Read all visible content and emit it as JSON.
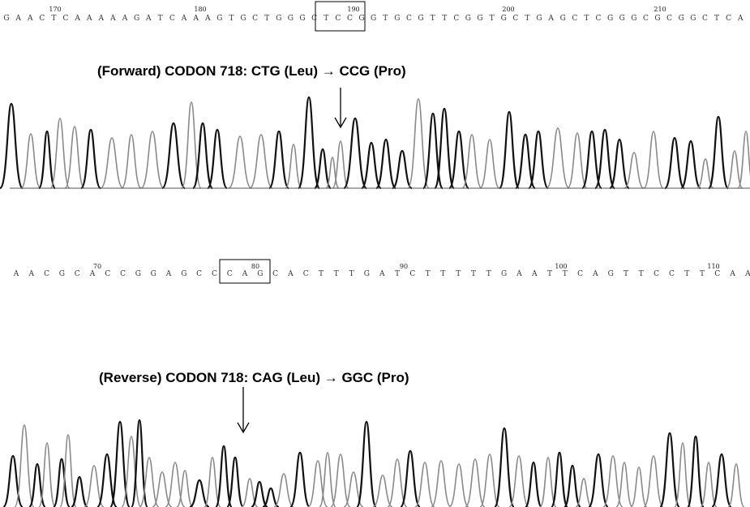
{
  "forward": {
    "caption": "(Forward) CODON 718: CTG (Leu) → CCG (Pro)",
    "bases": [
      "G",
      "A",
      "A",
      "C",
      "T",
      "C",
      "A",
      "A",
      "A",
      "A",
      "A",
      "G",
      "A",
      "T",
      "C",
      "A",
      "A",
      "A",
      "G",
      "T",
      "G",
      "C",
      "T",
      "G",
      "G",
      "G",
      "C",
      "T",
      "C",
      "C",
      "G",
      "G",
      "T",
      "G",
      "C",
      "G",
      "T",
      "T",
      "C",
      "G",
      "G",
      "T",
      "G",
      "C",
      "T",
      "G",
      "A",
      "G",
      "C",
      "T",
      "C",
      "G",
      "G",
      "G",
      "C",
      "G",
      "C",
      "G",
      "G",
      "C",
      "T",
      "C",
      "A"
    ],
    "positions": [
      {
        "label": "170"
      },
      {
        "label": "180"
      },
      {
        "label": "190"
      },
      {
        "label": "200"
      },
      {
        "label": "210"
      }
    ]
  },
  "reverse": {
    "caption": "(Reverse) CODON 718: CAG (Leu) → GGC (Pro)",
    "bases": [
      "A",
      "A",
      "C",
      "G",
      "C",
      "A",
      "C",
      "C",
      "G",
      "G",
      "A",
      "G",
      "C",
      "C",
      "C",
      "A",
      "G",
      "C",
      "A",
      "C",
      "T",
      "T",
      "T",
      "G",
      "A",
      "T",
      "C",
      "T",
      "T",
      "T",
      "T",
      "T",
      "G",
      "A",
      "A",
      "T",
      "T",
      "C",
      "A",
      "G",
      "T",
      "T",
      "C",
      "C",
      "T",
      "T",
      "C",
      "A",
      "A"
    ],
    "positions": [
      {
        "label": "70"
      },
      {
        "label": "80"
      },
      {
        "label": "90"
      },
      {
        "label": "100"
      },
      {
        "label": "110"
      }
    ]
  },
  "colors": {
    "dark_trace": "#111111",
    "light_trace": "#8a8a8a",
    "baseline": "#555555"
  }
}
